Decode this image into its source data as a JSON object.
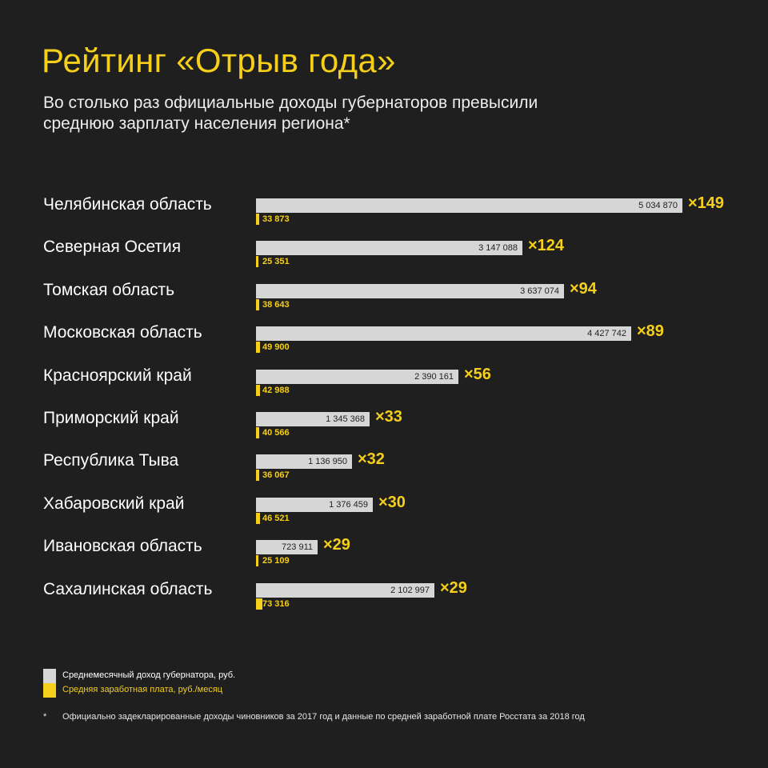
{
  "title": "Рейтинг «Отрыв года»",
  "subtitle": "Во столько раз официальные доходы губернаторов превысили среднюю зарплату населения региона*",
  "colors": {
    "governor": "#d6d6d6",
    "salary": "#f5cf1a",
    "background": "#1f1f1f"
  },
  "legend": {
    "governor": "Среднемесячный доход губернатора, руб.",
    "salary": "Средняя заработная плата, руб./месяц"
  },
  "footnote": {
    "mark": "*",
    "text": "Официально задекларированные доходы чиновников за 2017 год и данные по средней заработной плате Росстата за 2018 год"
  },
  "chart_data": {
    "type": "bar",
    "orientation": "horizontal",
    "categories": [
      "Челябинская область",
      "Северная Осетия",
      "Томская область",
      "Московская область",
      "Красноярский край",
      "Приморский край",
      "Республика Тыва",
      "Хабаровский край",
      "Ивановская область",
      "Сахалинская область"
    ],
    "series": [
      {
        "name": "Среднемесячный доход губернатора, руб.",
        "values": [
          5034870,
          3147088,
          3637074,
          4427742,
          2390161,
          1345368,
          1136950,
          1376459,
          723911,
          2102997
        ],
        "labels": [
          "5 034 870",
          "3 147 088",
          "3 637 074",
          "4 427 742",
          "2 390 161",
          "1 345 368",
          "1 136 950",
          "1 376 459",
          "723 911",
          "2 102 997"
        ]
      },
      {
        "name": "Средняя заработная плата, руб./месяц",
        "values": [
          33873,
          25351,
          38643,
          49900,
          42988,
          40566,
          36067,
          46521,
          25109,
          73316
        ],
        "labels": [
          "33 873",
          "25 351",
          "38 643",
          "49 900",
          "42 988",
          "40 566",
          "36 067",
          "46 521",
          "25 109",
          "73 316"
        ]
      }
    ],
    "ratios": [
      "×149",
      "×124",
      "×94",
      "×89",
      "×56",
      "×33",
      "×32",
      "×30",
      "×29",
      "×29"
    ],
    "xlim": [
      0,
      5034870
    ],
    "grid": false,
    "legend_position": "bottom-left"
  }
}
